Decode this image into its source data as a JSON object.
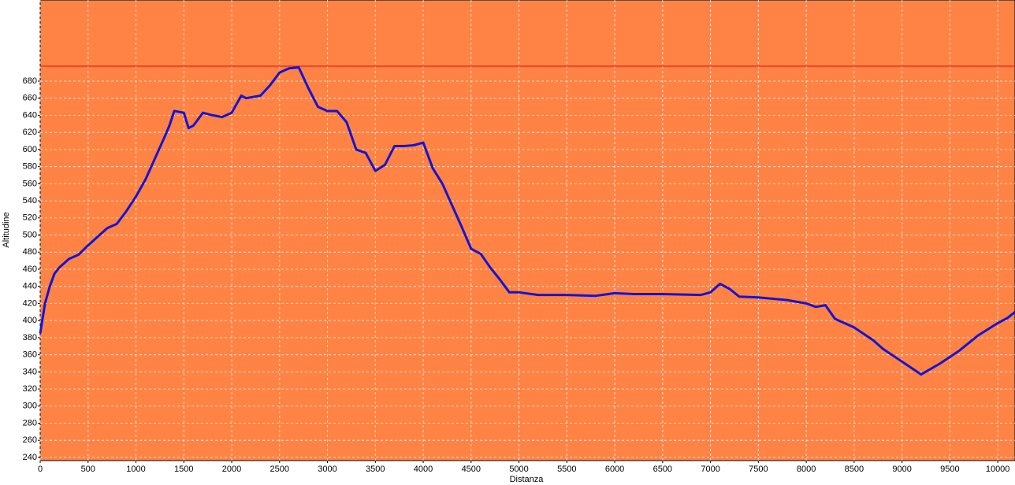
{
  "chart_data": {
    "type": "line",
    "x_label": "Distanza",
    "y_label": "Altitudine",
    "x": [
      0,
      50,
      100,
      150,
      200,
      300,
      400,
      500,
      600,
      700,
      800,
      900,
      1000,
      1100,
      1200,
      1300,
      1350,
      1400,
      1500,
      1550,
      1600,
      1700,
      1800,
      1900,
      2000,
      2100,
      2150,
      2300,
      2400,
      2500,
      2600,
      2700,
      2800,
      2900,
      3000,
      3100,
      3200,
      3300,
      3400,
      3500,
      3600,
      3700,
      3800,
      3900,
      4000,
      4100,
      4200,
      4300,
      4400,
      4500,
      4600,
      4700,
      4800,
      4900,
      5000,
      5200,
      5500,
      5800,
      6000,
      6200,
      6500,
      6900,
      7000,
      7100,
      7200,
      7300,
      7500,
      7800,
      8000,
      8100,
      8200,
      8300,
      8500,
      8700,
      8800,
      9000,
      9200,
      9400,
      9600,
      9800,
      10000,
      10100,
      10180
    ],
    "series": [
      {
        "name": "Altitudine",
        "color": "#1414d2",
        "values": [
          385,
          420,
          440,
          455,
          462,
          472,
          477,
          488,
          498,
          508,
          513,
          528,
          545,
          565,
          590,
          615,
          628,
          645,
          643,
          625,
          628,
          643,
          640,
          638,
          643,
          663,
          660,
          663,
          675,
          690,
          695,
          696,
          672,
          650,
          645,
          645,
          632,
          600,
          596,
          575,
          582,
          604,
          604,
          605,
          608,
          578,
          560,
          535,
          510,
          484,
          478,
          462,
          448,
          433,
          433,
          430,
          430,
          429,
          432,
          431,
          431,
          430,
          433,
          443,
          437,
          428,
          427,
          424,
          420,
          416,
          418,
          402,
          392,
          377,
          367,
          352,
          337,
          350,
          365,
          383,
          397,
          403,
          410
        ]
      }
    ],
    "xlim": [
      0,
      10180
    ],
    "ylim": [
      236.3,
      774.8
    ],
    "xticks": [
      0,
      500,
      1000,
      1500,
      2000,
      2500,
      3000,
      3500,
      4000,
      4500,
      5000,
      5500,
      6000,
      6500,
      7000,
      7500,
      8000,
      8500,
      9000,
      9500,
      10000
    ],
    "yticks": [
      240,
      260,
      280,
      300,
      320,
      340,
      360,
      380,
      400,
      420,
      440,
      460,
      480,
      500,
      520,
      540,
      560,
      580,
      600,
      620,
      640,
      660,
      680
    ],
    "grid": true,
    "background": "#fe8344",
    "reference_line": {
      "value": 697.5,
      "color": "#e01010"
    }
  }
}
